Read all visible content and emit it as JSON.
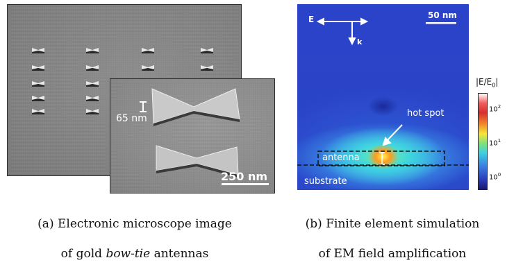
{
  "panel_a": {
    "inset_dim_label": "65 nm",
    "inset_scalebar_label": "250 nm",
    "caption_line1": "(a) Electronic microscope image",
    "caption_line2_pre": "of gold ",
    "caption_line2_em": "bow-tie",
    "caption_line2_post": " antennas"
  },
  "panel_b": {
    "e_label": "E",
    "k_label": "k",
    "scalebar_label": "50 nm",
    "hotspot_label": "hot spot",
    "antenna_label": "antenna",
    "substrate_label": "substrate",
    "colorbar_title": "|E/E",
    "colorbar_title_sub": "0",
    "colorbar_title_end": "|",
    "colorbar_ticks": [
      {
        "base": "10",
        "exp": "2"
      },
      {
        "base": "10",
        "exp": "1"
      },
      {
        "base": "10",
        "exp": "0"
      }
    ],
    "caption_line1": "(b) Finite element simulation",
    "caption_line2": "of EM field amplification"
  }
}
